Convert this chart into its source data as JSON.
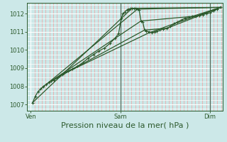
{
  "bg_color": "#cce8e8",
  "plot_bg_color": "#cce8e8",
  "line_color": "#2d5a2d",
  "grid_major_color": "#ffffff",
  "grid_minor_color": "#f0a0a0",
  "vline_color": "#556655",
  "xlabel": "Pression niveau de la mer( hPa )",
  "xlabel_fontsize": 8,
  "yticks": [
    1007,
    1008,
    1009,
    1010,
    1011,
    1012
  ],
  "ytick_fontsize": 6,
  "xtick_labels": [
    "Ven",
    "Sam",
    "Dim"
  ],
  "xtick_positions": [
    0.0,
    0.5,
    1.0
  ],
  "xtick_fontsize": 6,
  "ylim": [
    1006.65,
    1012.6
  ],
  "xlim": [
    -0.02,
    1.07
  ],
  "series": [
    [
      0.01,
      1007.1
    ],
    [
      0.025,
      1007.45
    ],
    [
      0.04,
      1007.7
    ],
    [
      0.055,
      1007.85
    ],
    [
      0.07,
      1008.0
    ],
    [
      0.085,
      1008.1
    ],
    [
      0.1,
      1008.2
    ],
    [
      0.115,
      1008.3
    ],
    [
      0.13,
      1008.35
    ],
    [
      0.145,
      1008.45
    ],
    [
      0.16,
      1008.55
    ],
    [
      0.175,
      1008.65
    ],
    [
      0.19,
      1008.75
    ],
    [
      0.21,
      1008.85
    ],
    [
      0.23,
      1008.95
    ],
    [
      0.26,
      1009.1
    ],
    [
      0.29,
      1009.3
    ],
    [
      0.32,
      1009.55
    ],
    [
      0.35,
      1009.75
    ],
    [
      0.38,
      1009.95
    ],
    [
      0.41,
      1010.1
    ],
    [
      0.44,
      1010.35
    ],
    [
      0.47,
      1010.65
    ],
    [
      0.49,
      1010.9
    ],
    [
      0.505,
      1011.75
    ],
    [
      0.515,
      1012.0
    ],
    [
      0.525,
      1012.1
    ],
    [
      0.535,
      1012.2
    ],
    [
      0.545,
      1012.25
    ],
    [
      0.555,
      1012.28
    ],
    [
      0.565,
      1012.3
    ],
    [
      0.575,
      1012.3
    ],
    [
      0.585,
      1012.28
    ],
    [
      0.595,
      1012.25
    ],
    [
      0.605,
      1012.2
    ],
    [
      0.615,
      1011.6
    ],
    [
      0.625,
      1011.55
    ],
    [
      0.635,
      1011.1
    ],
    [
      0.645,
      1011.05
    ],
    [
      0.66,
      1011.0
    ],
    [
      0.675,
      1010.95
    ],
    [
      0.69,
      1011.0
    ],
    [
      0.705,
      1011.05
    ],
    [
      0.72,
      1011.1
    ],
    [
      0.74,
      1011.15
    ],
    [
      0.76,
      1011.2
    ],
    [
      0.78,
      1011.3
    ],
    [
      0.8,
      1011.45
    ],
    [
      0.82,
      1011.55
    ],
    [
      0.84,
      1011.65
    ],
    [
      0.86,
      1011.75
    ],
    [
      0.88,
      1011.8
    ],
    [
      0.9,
      1011.85
    ],
    [
      0.92,
      1011.85
    ],
    [
      0.94,
      1011.9
    ],
    [
      0.96,
      1011.95
    ],
    [
      0.98,
      1012.0
    ],
    [
      1.0,
      1012.05
    ],
    [
      1.02,
      1012.15
    ],
    [
      1.04,
      1012.25
    ],
    [
      1.06,
      1012.35
    ]
  ],
  "extra_lines": [
    {
      "x": [
        0.01,
        0.565,
        1.06
      ],
      "y": [
        1007.1,
        1012.3,
        1012.35
      ]
    },
    {
      "x": [
        0.055,
        0.595,
        1.06
      ],
      "y": [
        1007.85,
        1012.25,
        1012.35
      ]
    },
    {
      "x": [
        0.085,
        0.615,
        0.9,
        1.06
      ],
      "y": [
        1008.1,
        1011.6,
        1011.85,
        1012.35
      ]
    },
    {
      "x": [
        0.115,
        0.635,
        0.76,
        1.06
      ],
      "y": [
        1008.3,
        1011.1,
        1011.2,
        1012.35
      ]
    },
    {
      "x": [
        0.175,
        0.66,
        0.8,
        1.06
      ],
      "y": [
        1008.65,
        1010.95,
        1011.45,
        1012.35
      ]
    }
  ],
  "marker_style": "+",
  "marker_size": 3.5,
  "linewidth": 0.9
}
